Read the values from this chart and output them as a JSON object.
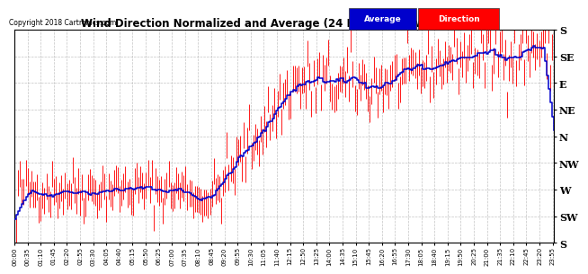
{
  "title": "Wind Direction Normalized and Average (24 Hours) (New) 20181211",
  "copyright": "Copyright 2018 Cartronics.com",
  "ytick_labels": [
    "S",
    "SE",
    "E",
    "NE",
    "N",
    "NW",
    "W",
    "SW",
    "S"
  ],
  "ytick_values": [
    360,
    315,
    270,
    225,
    180,
    135,
    90,
    45,
    0
  ],
  "ylim": [
    0,
    360
  ],
  "bg_color": "#ffffff",
  "grid_color": "#aaaaaa",
  "red_color": "#ff0000",
  "blue_color": "#0000cc",
  "legend_avg_bg": "#0000cc",
  "legend_dir_bg": "#ff0000",
  "legend_avg_text": "Average",
  "legend_dir_text": "Direction",
  "n_points": 288,
  "seed": 42
}
